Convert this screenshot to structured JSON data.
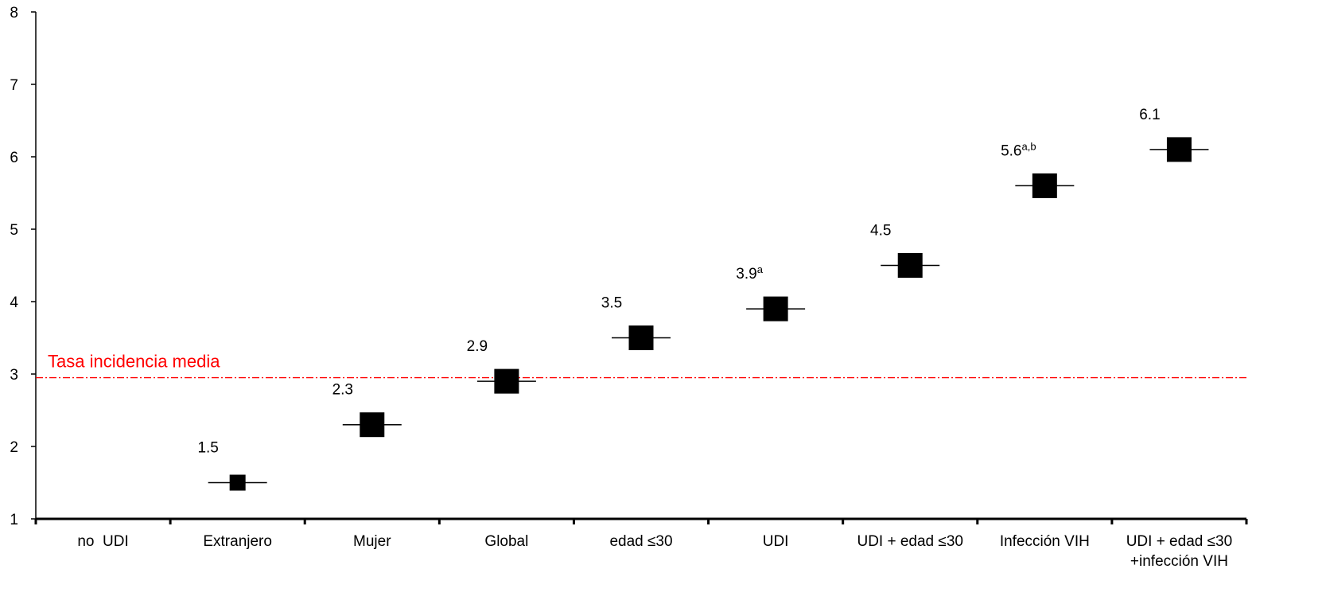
{
  "chart_data": {
    "type": "scatter",
    "categories": [
      "no  UDI",
      "Extranjero",
      "Mujer",
      "Global",
      "edad ≤30",
      "UDI",
      "UDI + edad ≤30",
      "Infección VIH",
      "UDI + edad ≤30\n+infección VIH"
    ],
    "series": [
      {
        "values": [
          null,
          1.5,
          2.3,
          2.9,
          3.5,
          3.9,
          4.5,
          5.6,
          6.1
        ],
        "labels": [
          "",
          "1.5",
          "2.3",
          "2.9",
          "3.5",
          "3.9",
          "4.5",
          "5.6",
          "6.1"
        ],
        "superscripts": [
          "",
          "",
          "",
          "",
          "",
          "a",
          "",
          "a,b",
          ""
        ],
        "color": "#000000"
      }
    ],
    "reference_line": {
      "value": 2.95,
      "label": "Tasa incidencia media",
      "color": "#ff0000"
    },
    "ylim": [
      1,
      8
    ],
    "yticks": [
      "1",
      "2",
      "3",
      "4",
      "5",
      "6",
      "7",
      "8"
    ],
    "xlabel": "",
    "ylabel": "",
    "grid": false
  }
}
